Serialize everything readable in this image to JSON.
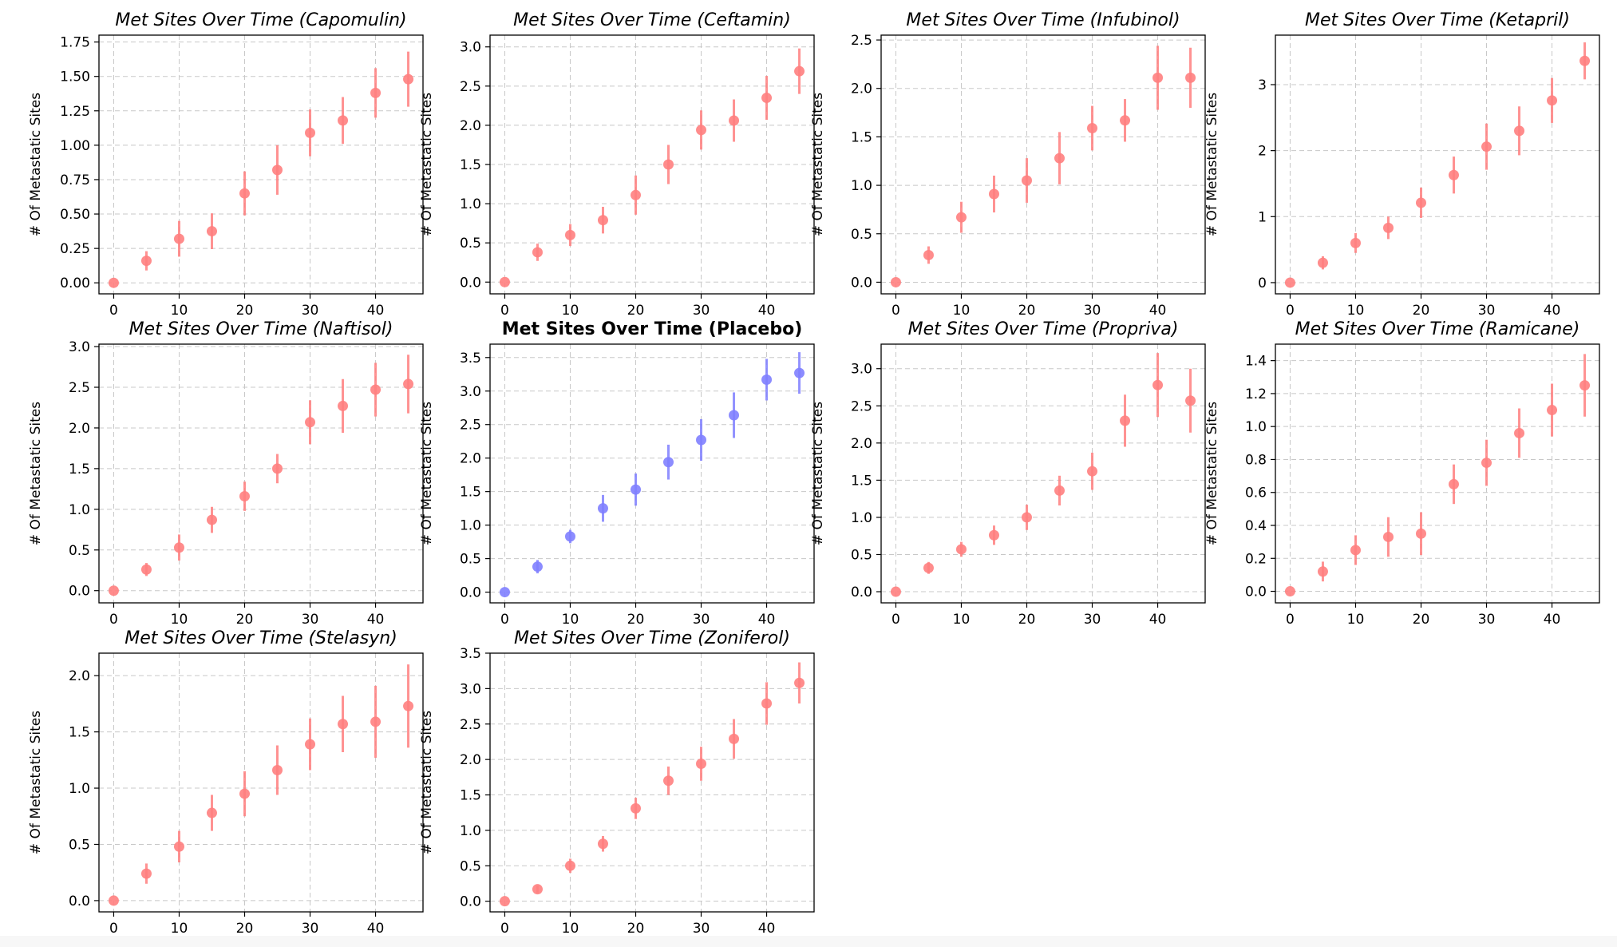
{
  "chart_data": [
    {
      "type": "scatter",
      "title": "Met Sites Over Time (Capomulin)",
      "xlabel": "",
      "ylabel": "# Of Metastatic Sites",
      "x": [
        0,
        5,
        10,
        15,
        20,
        25,
        30,
        35,
        40,
        45
      ],
      "y": [
        0.0,
        0.16,
        0.32,
        0.375,
        0.65,
        0.82,
        1.09,
        1.18,
        1.38,
        1.48
      ],
      "err": [
        0.0,
        0.07,
        0.13,
        0.13,
        0.16,
        0.18,
        0.17,
        0.17,
        0.18,
        0.2
      ],
      "xticks": [
        0,
        10,
        20,
        30,
        40
      ],
      "yticks": [
        "0.00",
        "0.25",
        "0.50",
        "0.75",
        "1.00",
        "1.25",
        "1.50",
        "1.75"
      ],
      "xlim": [
        -2.25,
        47.25
      ],
      "ylim": [
        -0.08,
        1.8
      ],
      "color": "#ff7f7f",
      "highlight": false,
      "grid": true
    },
    {
      "type": "scatter",
      "title": "Met Sites Over Time (Ceftamin)",
      "xlabel": "",
      "ylabel": "# Of Metastatic Sites",
      "x": [
        0,
        5,
        10,
        15,
        20,
        25,
        30,
        35,
        40,
        45
      ],
      "y": [
        0.0,
        0.38,
        0.6,
        0.79,
        1.11,
        1.5,
        1.94,
        2.06,
        2.35,
        2.69
      ],
      "err": [
        0.0,
        0.11,
        0.14,
        0.17,
        0.25,
        0.25,
        0.25,
        0.27,
        0.28,
        0.29
      ],
      "xticks": [
        0,
        10,
        20,
        30,
        40
      ],
      "yticks": [
        "0.0",
        "0.5",
        "1.0",
        "1.5",
        "2.0",
        "2.5",
        "3.0"
      ],
      "xlim": [
        -2.25,
        47.25
      ],
      "ylim": [
        -0.15,
        3.15
      ],
      "color": "#ff7f7f",
      "highlight": false,
      "grid": true
    },
    {
      "type": "scatter",
      "title": "Met Sites Over Time (Infubinol)",
      "xlabel": "",
      "ylabel": "# Of Metastatic Sites",
      "x": [
        0,
        5,
        10,
        15,
        20,
        25,
        30,
        35,
        40,
        45
      ],
      "y": [
        0.0,
        0.28,
        0.67,
        0.91,
        1.05,
        1.28,
        1.59,
        1.67,
        2.11,
        2.11
      ],
      "err": [
        0.0,
        0.09,
        0.16,
        0.19,
        0.23,
        0.27,
        0.23,
        0.22,
        0.33,
        0.31
      ],
      "xticks": [
        0,
        10,
        20,
        30,
        40
      ],
      "yticks": [
        "0.0",
        "0.5",
        "1.0",
        "1.5",
        "2.0",
        "2.5"
      ],
      "xlim": [
        -2.25,
        47.25
      ],
      "ylim": [
        -0.12,
        2.55
      ],
      "color": "#ff7f7f",
      "highlight": false,
      "grid": true
    },
    {
      "type": "scatter",
      "title": "Met Sites Over Time (Ketapril)",
      "xlabel": "",
      "ylabel": "# Of Metastatic Sites",
      "x": [
        0,
        5,
        10,
        15,
        20,
        25,
        30,
        35,
        40,
        45
      ],
      "y": [
        0.0,
        0.3,
        0.6,
        0.83,
        1.21,
        1.63,
        2.06,
        2.3,
        2.76,
        3.36
      ],
      "err": [
        0.0,
        0.1,
        0.15,
        0.17,
        0.23,
        0.28,
        0.35,
        0.37,
        0.34,
        0.28
      ],
      "xticks": [
        0,
        10,
        20,
        30,
        40
      ],
      "yticks": [
        "0",
        "1",
        "2",
        "3"
      ],
      "xlim": [
        -2.25,
        47.25
      ],
      "ylim": [
        -0.17,
        3.75
      ],
      "color": "#ff7f7f",
      "highlight": false,
      "grid": true
    },
    {
      "type": "scatter",
      "title": "Met Sites Over Time (Naftisol)",
      "xlabel": "",
      "ylabel": "# Of Metastatic Sites",
      "x": [
        0,
        5,
        10,
        15,
        20,
        25,
        30,
        35,
        40,
        45
      ],
      "y": [
        0.0,
        0.26,
        0.53,
        0.87,
        1.16,
        1.5,
        2.07,
        2.27,
        2.47,
        2.54
      ],
      "err": [
        0.0,
        0.08,
        0.16,
        0.16,
        0.18,
        0.18,
        0.27,
        0.33,
        0.33,
        0.36
      ],
      "xticks": [
        0,
        10,
        20,
        30,
        40
      ],
      "yticks": [
        "0.0",
        "0.5",
        "1.0",
        "1.5",
        "2.0",
        "2.5",
        "3.0"
      ],
      "xlim": [
        -2.25,
        47.25
      ],
      "ylim": [
        -0.15,
        3.03
      ],
      "color": "#ff7f7f",
      "highlight": false,
      "grid": true
    },
    {
      "type": "scatter",
      "title": "Met Sites Over Time (Placebo)",
      "xlabel": "",
      "ylabel": "# Of Metastatic Sites",
      "x": [
        0,
        5,
        10,
        15,
        20,
        25,
        30,
        35,
        40,
        45
      ],
      "y": [
        0.0,
        0.38,
        0.83,
        1.25,
        1.53,
        1.94,
        2.27,
        2.64,
        3.17,
        3.27
      ],
      "err": [
        0.0,
        0.1,
        0.1,
        0.2,
        0.24,
        0.26,
        0.31,
        0.34,
        0.31,
        0.31
      ],
      "xticks": [
        0,
        10,
        20,
        30,
        40
      ],
      "yticks": [
        "0.0",
        "0.5",
        "1.0",
        "1.5",
        "2.0",
        "2.5",
        "3.0",
        "3.5"
      ],
      "xlim": [
        -2.25,
        47.25
      ],
      "ylim": [
        -0.16,
        3.7
      ],
      "color": "#7f7fff",
      "highlight": true,
      "grid": true
    },
    {
      "type": "scatter",
      "title": "Met Sites Over Time (Propriva)",
      "xlabel": "",
      "ylabel": "# Of Metastatic Sites",
      "x": [
        0,
        5,
        10,
        15,
        20,
        25,
        30,
        35,
        40,
        45
      ],
      "y": [
        0.0,
        0.32,
        0.57,
        0.76,
        1.0,
        1.36,
        1.62,
        2.3,
        2.78,
        2.57
      ],
      "err": [
        0.0,
        0.08,
        0.1,
        0.13,
        0.17,
        0.2,
        0.25,
        0.35,
        0.43,
        0.43
      ],
      "xticks": [
        0,
        10,
        20,
        30,
        40
      ],
      "yticks": [
        "0.0",
        "0.5",
        "1.0",
        "1.5",
        "2.0",
        "2.5",
        "3.0"
      ],
      "xlim": [
        -2.25,
        47.25
      ],
      "ylim": [
        -0.15,
        3.33
      ],
      "color": "#ff7f7f",
      "highlight": false,
      "grid": true
    },
    {
      "type": "scatter",
      "title": "Met Sites Over Time (Ramicane)",
      "xlabel": "",
      "ylabel": "# Of Metastatic Sites",
      "x": [
        0,
        5,
        10,
        15,
        20,
        25,
        30,
        35,
        40,
        45
      ],
      "y": [
        0.0,
        0.12,
        0.25,
        0.33,
        0.35,
        0.65,
        0.78,
        0.96,
        1.1,
        1.25
      ],
      "err": [
        0.0,
        0.06,
        0.09,
        0.12,
        0.13,
        0.12,
        0.14,
        0.15,
        0.16,
        0.19
      ],
      "xticks": [
        0,
        10,
        20,
        30,
        40
      ],
      "yticks": [
        "0.0",
        "0.2",
        "0.4",
        "0.6",
        "0.8",
        "1.0",
        "1.2",
        "1.4"
      ],
      "xlim": [
        -2.25,
        47.25
      ],
      "ylim": [
        -0.07,
        1.5
      ],
      "color": "#ff7f7f",
      "highlight": false,
      "grid": true
    },
    {
      "type": "scatter",
      "title": "Met Sites Over Time (Stelasyn)",
      "xlabel": "",
      "ylabel": "# Of Metastatic Sites",
      "x": [
        0,
        5,
        10,
        15,
        20,
        25,
        30,
        35,
        40,
        45
      ],
      "y": [
        0.0,
        0.24,
        0.48,
        0.78,
        0.95,
        1.16,
        1.39,
        1.57,
        1.59,
        1.73
      ],
      "err": [
        0.0,
        0.09,
        0.14,
        0.16,
        0.2,
        0.22,
        0.23,
        0.25,
        0.32,
        0.37
      ],
      "xticks": [
        0,
        10,
        20,
        30,
        40
      ],
      "yticks": [
        "0.0",
        "0.5",
        "1.0",
        "1.5",
        "2.0"
      ],
      "xlim": [
        -2.25,
        47.25
      ],
      "ylim": [
        -0.1,
        2.2
      ],
      "color": "#ff7f7f",
      "highlight": false,
      "grid": true
    },
    {
      "type": "scatter",
      "title": "Met Sites Over Time (Zoniferol)",
      "xlabel": "",
      "ylabel": "# Of Metastatic Sites",
      "x": [
        0,
        5,
        10,
        15,
        20,
        25,
        30,
        35,
        40,
        45
      ],
      "y": [
        0.0,
        0.17,
        0.5,
        0.81,
        1.31,
        1.7,
        1.94,
        2.29,
        2.79,
        3.08
      ],
      "err": [
        0.0,
        0.05,
        0.1,
        0.11,
        0.15,
        0.2,
        0.24,
        0.28,
        0.3,
        0.29
      ],
      "xticks": [
        0,
        10,
        20,
        30,
        40
      ],
      "yticks": [
        "0.0",
        "0.5",
        "1.0",
        "1.5",
        "2.0",
        "2.5",
        "3.0",
        "3.5"
      ],
      "xlim": [
        -2.25,
        47.25
      ],
      "ylim": [
        -0.15,
        3.5
      ],
      "color": "#ff7f7f",
      "highlight": false,
      "grid": true
    }
  ]
}
